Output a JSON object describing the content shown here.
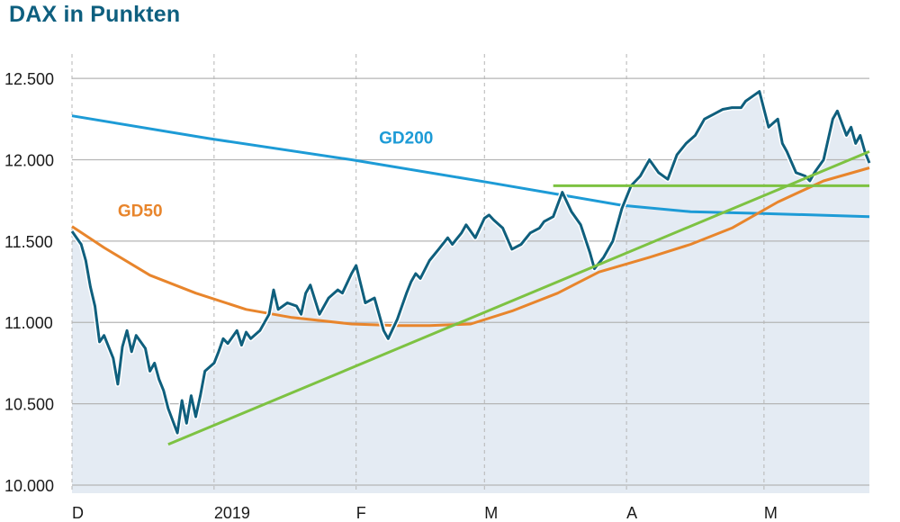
{
  "chart_data": {
    "type": "line",
    "title": "DAX in Punkten",
    "y_ticks": [
      "12.500",
      "12.000",
      "11.500",
      "11.000",
      "10.500",
      "10.000"
    ],
    "y_tick_values": [
      12500,
      12000,
      11500,
      11000,
      10500,
      10000
    ],
    "ylim": [
      9950,
      12650
    ],
    "xlim": [
      "2018-12-01",
      "2019-05-24"
    ],
    "x_ticks": [
      {
        "label": "D",
        "date": "2018-12-01"
      },
      {
        "label": "2019",
        "date": "2019-01-01"
      },
      {
        "label": "F",
        "date": "2019-02-01"
      },
      {
        "label": "M",
        "date": "2019-03-01"
      },
      {
        "label": "A",
        "date": "2019-04-01"
      },
      {
        "label": "M",
        "date": "2019-05-01"
      }
    ],
    "grid": true,
    "colors": {
      "dax": "#0f5f7d",
      "gd200": "#1d9bd6",
      "gd50": "#e8852c",
      "trend": "#7dc242",
      "area": "#e4ebf3",
      "grid": "#b5b5b5"
    },
    "annotations": [
      {
        "text": "GD200",
        "series": "gd200",
        "x": "2019-02-06",
        "y": 12100
      },
      {
        "text": "GD50",
        "series": "gd50",
        "x": "2018-12-11",
        "y": 11650
      }
    ],
    "series": [
      {
        "key": "dax",
        "x": [
          "2018-12-01",
          "2018-12-03",
          "2018-12-04",
          "2018-12-05",
          "2018-12-06",
          "2018-12-07",
          "2018-12-08",
          "2018-12-10",
          "2018-12-11",
          "2018-12-12",
          "2018-12-13",
          "2018-12-14",
          "2018-12-15",
          "2018-12-17",
          "2018-12-18",
          "2018-12-19",
          "2018-12-20",
          "2018-12-21",
          "2018-12-22",
          "2018-12-24",
          "2018-12-25",
          "2018-12-26",
          "2018-12-27",
          "2018-12-28",
          "2018-12-29",
          "2018-12-30",
          "2019-01-01",
          "2019-01-02",
          "2019-01-03",
          "2019-01-04",
          "2019-01-06",
          "2019-01-07",
          "2019-01-08",
          "2019-01-09",
          "2019-01-11",
          "2019-01-13",
          "2019-01-14",
          "2019-01-15",
          "2019-01-17",
          "2019-01-19",
          "2019-01-20",
          "2019-01-21",
          "2019-01-22",
          "2019-01-24",
          "2019-01-26",
          "2019-01-28",
          "2019-01-29",
          "2019-01-31",
          "2019-02-01",
          "2019-02-03",
          "2019-02-05",
          "2019-02-07",
          "2019-02-08",
          "2019-02-10",
          "2019-02-11",
          "2019-02-12",
          "2019-02-13",
          "2019-02-14",
          "2019-02-15",
          "2019-02-17",
          "2019-02-19",
          "2019-02-21",
          "2019-02-22",
          "2019-02-24",
          "2019-02-25",
          "2019-02-27",
          "2019-03-01",
          "2019-03-02",
          "2019-03-03",
          "2019-03-05",
          "2019-03-07",
          "2019-03-09",
          "2019-03-11",
          "2019-03-13",
          "2019-03-14",
          "2019-03-16",
          "2019-03-18",
          "2019-03-20",
          "2019-03-22",
          "2019-03-24",
          "2019-03-25",
          "2019-03-27",
          "2019-03-29",
          "2019-03-31",
          "2019-04-02",
          "2019-04-04",
          "2019-04-06",
          "2019-04-08",
          "2019-04-10",
          "2019-04-12",
          "2019-04-14",
          "2019-04-16",
          "2019-04-18",
          "2019-04-20",
          "2019-04-22",
          "2019-04-24",
          "2019-04-26",
          "2019-04-27",
          "2019-04-29",
          "2019-04-30",
          "2019-05-02",
          "2019-05-04",
          "2019-05-05",
          "2019-05-06",
          "2019-05-08",
          "2019-05-10",
          "2019-05-11",
          "2019-05-12",
          "2019-05-14",
          "2019-05-16",
          "2019-05-17",
          "2019-05-19",
          "2019-05-20",
          "2019-05-21",
          "2019-05-22",
          "2019-05-23",
          "2019-05-24"
        ],
        "values": [
          11560,
          11480,
          11380,
          11220,
          11100,
          10880,
          10920,
          10780,
          10620,
          10850,
          10950,
          10820,
          10920,
          10840,
          10700,
          10750,
          10650,
          10580,
          10470,
          10320,
          10520,
          10380,
          10550,
          10420,
          10550,
          10700,
          10750,
          10820,
          10900,
          10870,
          10950,
          10860,
          10940,
          10900,
          10950,
          11050,
          11200,
          11080,
          11120,
          11100,
          11050,
          11180,
          11230,
          11050,
          11150,
          11200,
          11180,
          11300,
          11350,
          11120,
          11150,
          10950,
          10900,
          11020,
          11100,
          11180,
          11250,
          11300,
          11270,
          11380,
          11450,
          11520,
          11480,
          11550,
          11600,
          11520,
          11640,
          11660,
          11630,
          11580,
          11450,
          11480,
          11550,
          11580,
          11620,
          11650,
          11800,
          11680,
          11600,
          11430,
          11330,
          11400,
          11500,
          11700,
          11840,
          11900,
          12000,
          11920,
          11880,
          12030,
          12100,
          12150,
          12250,
          12280,
          12310,
          12320,
          12320,
          12360,
          12400,
          12420,
          12200,
          12250,
          12100,
          12050,
          11920,
          11900,
          11870,
          11920,
          12000,
          12250,
          12300,
          12150,
          12200,
          12100,
          12150,
          12050,
          11980
        ]
      },
      {
        "key": "gd200",
        "x": [
          "2018-12-01",
          "2018-12-31",
          "2019-01-31",
          "2019-03-02",
          "2019-03-31",
          "2019-04-15",
          "2019-04-30",
          "2019-05-24"
        ],
        "values": [
          12270,
          12130,
          12000,
          11860,
          11720,
          11680,
          11670,
          11650
        ]
      },
      {
        "key": "gd50",
        "x": [
          "2018-12-01",
          "2018-12-08",
          "2018-12-18",
          "2018-12-28",
          "2019-01-08",
          "2019-01-18",
          "2019-01-31",
          "2019-02-10",
          "2019-02-17",
          "2019-02-26",
          "2019-03-07",
          "2019-03-17",
          "2019-03-26",
          "2019-04-06",
          "2019-04-15",
          "2019-04-24",
          "2019-05-04",
          "2019-05-14",
          "2019-05-24"
        ],
        "values": [
          11590,
          11460,
          11290,
          11180,
          11080,
          11030,
          10990,
          10980,
          10980,
          10990,
          11070,
          11180,
          11310,
          11400,
          11480,
          11580,
          11740,
          11870,
          11950
        ]
      },
      {
        "key": "trend_rising",
        "x": [
          "2018-12-22",
          "2019-05-24"
        ],
        "values": [
          10250,
          12050
        ]
      },
      {
        "key": "resistance",
        "x": [
          "2019-03-16",
          "2019-05-24"
        ],
        "values": [
          11840,
          11840
        ]
      }
    ]
  }
}
